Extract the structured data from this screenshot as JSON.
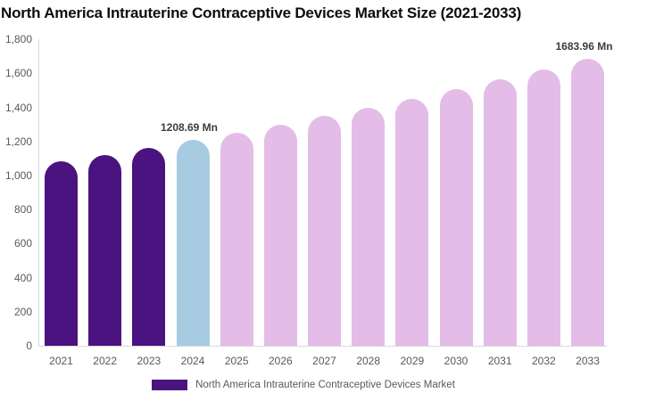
{
  "title": "North America Intrauterine Contraceptive Devices Market Size (2021-2033)",
  "chart_data": {
    "type": "bar",
    "title": "North America Intrauterine Contraceptive Devices Market Size (2021-2033)",
    "categories": [
      "2021",
      "2022",
      "2023",
      "2024",
      "2025",
      "2026",
      "2027",
      "2028",
      "2029",
      "2030",
      "2031",
      "2032",
      "2033"
    ],
    "values": [
      1082.2,
      1122.8,
      1165.0,
      1208.69,
      1254.1,
      1301.1,
      1349.9,
      1400.6,
      1453.2,
      1507.7,
      1564.3,
      1623.0,
      1683.96
    ],
    "unit": "Mn",
    "xlabel": "",
    "ylabel": "",
    "ylim": [
      0,
      1800
    ],
    "y_tick_labels": [
      "0",
      "200",
      "400",
      "600",
      "800",
      "1,000",
      "1,200",
      "1,400",
      "1,600",
      "1,800"
    ],
    "y_tick_values": [
      0,
      200,
      400,
      600,
      800,
      1000,
      1200,
      1400,
      1600,
      1800
    ],
    "grid": "off",
    "legend_position": "bottom",
    "bar_styles": [
      "historical",
      "historical",
      "historical",
      "current",
      "forecast",
      "forecast",
      "forecast",
      "forecast",
      "forecast",
      "forecast",
      "forecast",
      "forecast",
      "forecast"
    ],
    "colors": {
      "historical": "#4A1380",
      "current": "#A7CCE2",
      "forecast": "#E3BCE8",
      "axis_line": "#d9d9d9",
      "axis_text": "#595959",
      "data_label_text": "#3d3d3d"
    },
    "data_labels": [
      {
        "category": "2024",
        "text": "1208.69 Mn"
      },
      {
        "category": "2033",
        "text": "1683.96 Mn"
      }
    ]
  },
  "legend": {
    "label": "North America Intrauterine Contraceptive Devices Market",
    "swatch_color": "#4A1380"
  }
}
